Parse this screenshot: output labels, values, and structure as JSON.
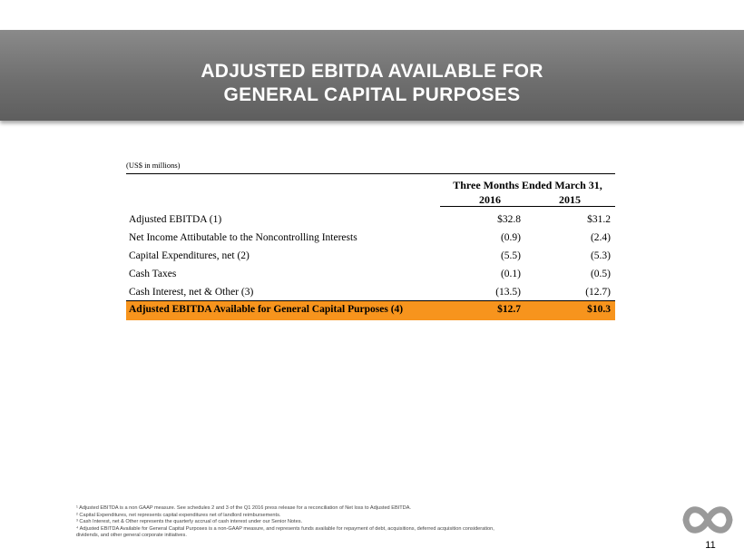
{
  "header": {
    "title_line1": "ADJUSTED EBITDA AVAILABLE FOR",
    "title_line2": "GENERAL CAPITAL PURPOSES"
  },
  "table": {
    "units": "(US$ in millions)",
    "period_header": "Three Months Ended March 31,",
    "years": [
      "2016",
      "2015"
    ],
    "rows": [
      {
        "label": "Adjusted EBITDA (1)",
        "v2016": "$32.8",
        "v2015": "$31.2"
      },
      {
        "label": "Net Income Attibutable to the Noncontrolling Interests",
        "v2016": "(0.9)",
        "v2015": "(2.4)"
      },
      {
        "label": "Capital Expenditures, net (2)",
        "v2016": "(5.5)",
        "v2015": "(5.3)"
      },
      {
        "label": "Cash Taxes",
        "v2016": "(0.1)",
        "v2015": "(0.5)"
      },
      {
        "label": "Cash Interest, net & Other (3)",
        "v2016": "(13.5)",
        "v2015": "(12.7)"
      },
      {
        "label": "Adjusted EBITDA Available for General Capital Purposes (4)",
        "v2016": "$12.7",
        "v2015": "$10.3"
      }
    ]
  },
  "footnotes": [
    "¹ Adjusted EBITDA is a non GAAP measure.  See schedules 2 and 3 of the Q1 2016 press release for a reconciliation of Net loss to Adjusted EBITDA.",
    "² Capital Expenditures, net represents capital expenditures net of landlord reimbursements.",
    "³ Cash Interest, net & Other represents the quarterly accrual of cash interest under our Senior Notes.",
    "⁴ Adjusted EBITDA Available for General Capital Purposes is a non-GAAP measure, and represents funds available for repayment of debt, acquisitions, deferred acquisition consideration,",
    "dividends, and other general corporate initiatives."
  ],
  "page_number": "11",
  "colors": {
    "highlight": "#f7941d",
    "header_bg": "#6f6f6f",
    "logo": "#9a9a9a"
  },
  "logo_icon": "infinity-logo-icon"
}
